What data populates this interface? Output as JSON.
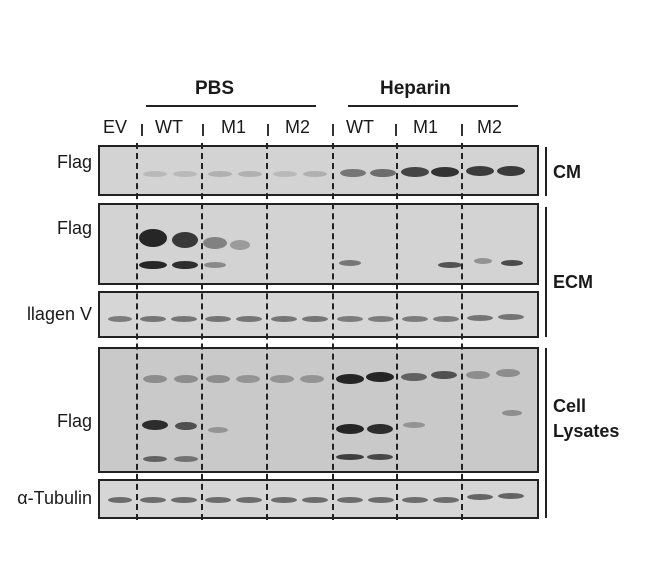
{
  "groups": {
    "pbs": "PBS",
    "heparin": "Heparin"
  },
  "lanes": {
    "ev": "EV",
    "pbs_wt": "WT",
    "pbs_m1": "M1",
    "pbs_m2": "M2",
    "hep_wt": "WT",
    "hep_m1": "M1",
    "hep_m2": "M2"
  },
  "rows": {
    "cm_flag": "Flag",
    "ecm_flag": "Flag",
    "collagen": "llagen V",
    "lysate_flag": "Flag",
    "tubulin": "α-Tubulin"
  },
  "sections": {
    "cm": "CM",
    "ecm": "ECM",
    "lysates_line1": "Cell",
    "lysates_line2": "Lysates"
  },
  "colors": {
    "panel_bg": "#d6d6d6",
    "band": "#1c1c1c",
    "ink": "#111111"
  }
}
